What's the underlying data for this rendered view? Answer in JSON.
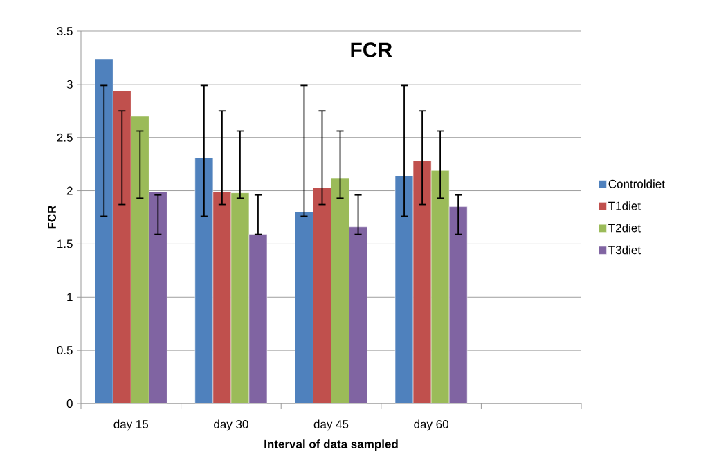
{
  "chart_data": {
    "type": "bar",
    "title": "FCR",
    "xlabel": "Interval of data sampled",
    "ylabel": "FCR",
    "categories": [
      "day 15",
      "day 30",
      "day 45",
      "day 60",
      null
    ],
    "series": [
      {
        "name": "Controldiet",
        "color": "#4f81bd",
        "values": [
          3.24,
          2.31,
          1.8,
          2.14,
          null
        ],
        "errors": [
          [
            1.76,
            2.99
          ],
          [
            1.76,
            2.99
          ],
          [
            1.76,
            2.99
          ],
          [
            1.76,
            2.99
          ],
          null
        ]
      },
      {
        "name": "T1diet",
        "color": "#c0504d",
        "values": [
          2.94,
          1.99,
          2.03,
          2.28,
          null
        ],
        "errors": [
          [
            1.87,
            2.75
          ],
          [
            1.87,
            2.75
          ],
          [
            1.87,
            2.75
          ],
          [
            1.87,
            2.75
          ],
          null
        ]
      },
      {
        "name": "T2diet",
        "color": "#9bbb59",
        "values": [
          2.7,
          1.98,
          2.12,
          2.19,
          null
        ],
        "errors": [
          [
            1.93,
            2.56
          ],
          [
            1.93,
            2.56
          ],
          [
            1.93,
            2.56
          ],
          [
            1.93,
            2.56
          ],
          null
        ]
      },
      {
        "name": "T3diet",
        "color": "#8064a2",
        "values": [
          1.99,
          1.59,
          1.66,
          1.85,
          null
        ],
        "errors": [
          [
            1.59,
            1.96
          ],
          [
            1.59,
            1.96
          ],
          [
            1.59,
            1.96
          ],
          [
            1.59,
            1.96
          ],
          null
        ]
      }
    ],
    "ylim": [
      0,
      3.5
    ],
    "yticks": [
      0,
      0.5,
      1,
      1.5,
      2,
      2.5,
      3,
      3.5
    ],
    "grid": "y",
    "legend": "right"
  }
}
